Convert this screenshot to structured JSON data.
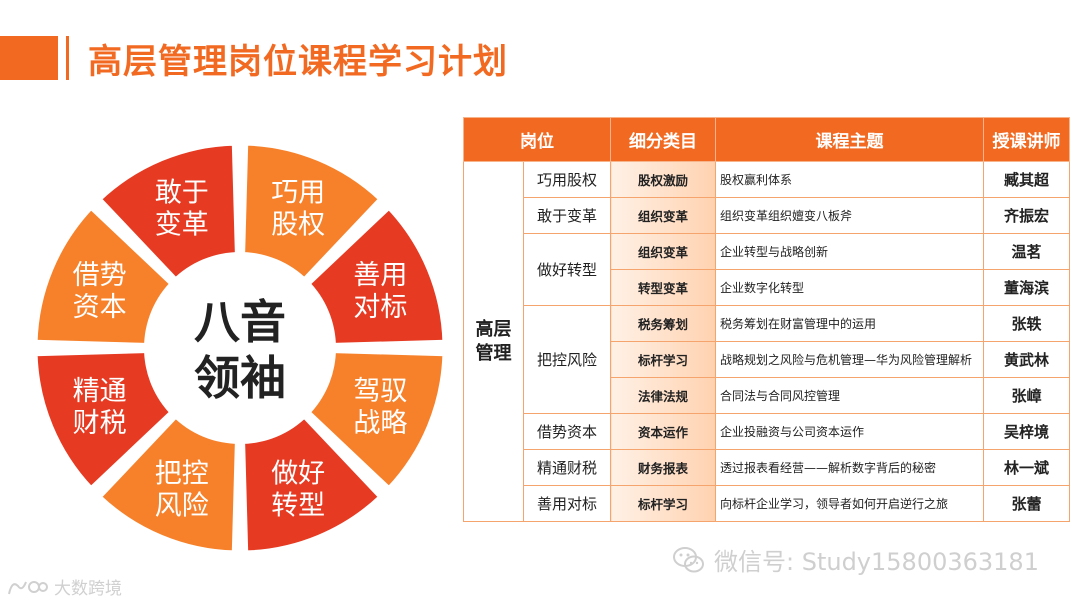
{
  "title": "高层管理岗位课程学习计划",
  "wheel": {
    "center": [
      "八音",
      "领袖"
    ],
    "segments": [
      {
        "label": "巧用股权",
        "color": "#f7812a"
      },
      {
        "label": "善用对标",
        "color": "#e63a22"
      },
      {
        "label": "驾驭战略",
        "color": "#f7812a"
      },
      {
        "label": "做好转型",
        "color": "#e63a22"
      },
      {
        "label": "把控风险",
        "color": "#f7812a"
      },
      {
        "label": "精通财税",
        "color": "#e63a22"
      },
      {
        "label": "借势资本",
        "color": "#f7812a"
      },
      {
        "label": "敢于变革",
        "color": "#e63a22"
      }
    ]
  },
  "table": {
    "headers": [
      "岗位",
      "细分类目",
      "课程主题",
      "授课讲师"
    ],
    "position": "高层管理",
    "rows": [
      {
        "sub": "巧用股权",
        "span": 1,
        "cat": "股权激励",
        "topic": "股权赢利体系",
        "lecturer": "臧其超"
      },
      {
        "sub": "敢于变革",
        "span": 1,
        "cat": "组织变革",
        "topic": "组织变革组织嬗变八板斧",
        "lecturer": "齐振宏"
      },
      {
        "sub": "做好转型",
        "span": 2,
        "cat": "组织变革",
        "topic": "企业转型与战略创新",
        "lecturer": "温茗"
      },
      {
        "sub": null,
        "span": 0,
        "cat": "转型变革",
        "topic": "企业数字化转型",
        "lecturer": "董海滨"
      },
      {
        "sub": "把控风险",
        "span": 3,
        "cat": "税务筹划",
        "topic": "税务筹划在财富管理中的运用",
        "lecturer": "张轶"
      },
      {
        "sub": null,
        "span": 0,
        "cat": "标杆学习",
        "topic": "战略规划之风险与危机管理—华为风险管理解析",
        "lecturer": "黄武林"
      },
      {
        "sub": null,
        "span": 0,
        "cat": "法律法规",
        "topic": "合同法与合同风控管理",
        "lecturer": "张嶂"
      },
      {
        "sub": "借势资本",
        "span": 1,
        "cat": "资本运作",
        "topic": "企业投融资与公司资本运作",
        "lecturer": "吴梓境"
      },
      {
        "sub": "精通财税",
        "span": 1,
        "cat": "财务报表",
        "topic": "透过报表看经营——解析数字背后的秘密",
        "lecturer": "林一斌"
      },
      {
        "sub": "善用对标",
        "span": 1,
        "cat": "标杆学习",
        "topic": "向标杆企业学习，领导者如何开启逆行之旅",
        "lecturer": "张蕾"
      }
    ]
  },
  "watermark": {
    "wechat": "微信号: Study15800363181",
    "brand": "大数跨境"
  }
}
